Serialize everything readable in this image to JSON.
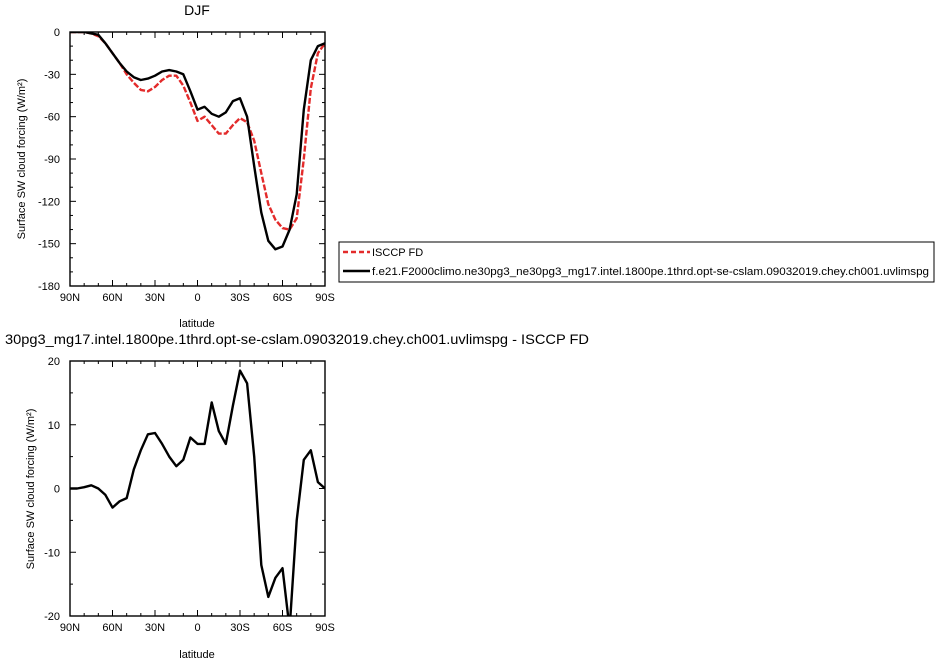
{
  "chart_data": [
    {
      "type": "line",
      "title": "DJF",
      "xlabel": "latitude",
      "ylabel": "Surface SW cloud forcing (W/m²)",
      "x_direction": "north-to-south",
      "xlim": [
        90,
        -90
      ],
      "ylim": [
        -180,
        0
      ],
      "x_ticks": [
        {
          "value": 90,
          "label": "90N"
        },
        {
          "value": 60,
          "label": "60N"
        },
        {
          "value": 30,
          "label": "30N"
        },
        {
          "value": 0,
          "label": "0"
        },
        {
          "value": -30,
          "label": "30S"
        },
        {
          "value": -60,
          "label": "60S"
        },
        {
          "value": -90,
          "label": "90S"
        }
      ],
      "y_ticks": [
        0,
        -30,
        -60,
        -90,
        -120,
        -150,
        -180
      ],
      "legend_position": "right",
      "series": [
        {
          "name": "ISCCP FD",
          "color": "#e32b2b",
          "dash": "dashed",
          "x": [
            90,
            85,
            80,
            75,
            70,
            65,
            60,
            55,
            50,
            45,
            40,
            35,
            30,
            25,
            20,
            15,
            10,
            5,
            0,
            -5,
            -10,
            -15,
            -20,
            -25,
            -30,
            -35,
            -40,
            -45,
            -50,
            -55,
            -60,
            -65,
            -70,
            -75,
            -80,
            -85,
            -90
          ],
          "y": [
            0,
            0,
            0,
            -1,
            -3,
            -8,
            -15,
            -22,
            -30,
            -36,
            -41,
            -42,
            -39,
            -34,
            -31,
            -31,
            -38,
            -50,
            -63,
            -60,
            -66,
            -72,
            -72,
            -66,
            -61,
            -64,
            -77,
            -100,
            -122,
            -133,
            -139,
            -140,
            -132,
            -90,
            -40,
            -15,
            -8
          ]
        },
        {
          "name": "f.e21.F2000climo.ne30pg3_ne30pg3_mg17.intel.1800pe.1thrd.opt-se-cslam.09032019.chey.ch001.uvlimspg",
          "color": "#000000",
          "dash": "solid",
          "x": [
            90,
            85,
            80,
            75,
            70,
            65,
            60,
            55,
            50,
            45,
            40,
            35,
            30,
            25,
            20,
            15,
            10,
            5,
            0,
            -5,
            -10,
            -15,
            -20,
            -25,
            -30,
            -35,
            -40,
            -45,
            -50,
            -55,
            -60,
            -65,
            -70,
            -75,
            -80,
            -85,
            -90
          ],
          "y": [
            0,
            0,
            0,
            -1,
            -2,
            -8,
            -15,
            -22,
            -28,
            -32,
            -34,
            -33,
            -31,
            -28,
            -27,
            -28,
            -30,
            -42,
            -55,
            -53,
            -58,
            -60,
            -57,
            -49,
            -47,
            -60,
            -95,
            -128,
            -148,
            -154,
            -152,
            -140,
            -115,
            -55,
            -20,
            -10,
            -8
          ]
        }
      ]
    },
    {
      "type": "line",
      "title": "30pg3_mg17.intel.1800pe.1thrd.opt-se-cslam.09032019.chey.ch001.uvlimspg - ISCCP FD",
      "xlabel": "latitude",
      "ylabel": "Surface SW cloud forcing (W/m²)",
      "x_direction": "north-to-south",
      "xlim": [
        90,
        -90
      ],
      "ylim": [
        -20,
        20
      ],
      "x_ticks": [
        {
          "value": 90,
          "label": "90N"
        },
        {
          "value": 60,
          "label": "60N"
        },
        {
          "value": 30,
          "label": "30N"
        },
        {
          "value": 0,
          "label": "0"
        },
        {
          "value": -30,
          "label": "30S"
        },
        {
          "value": -60,
          "label": "60S"
        },
        {
          "value": -90,
          "label": "90S"
        }
      ],
      "y_ticks": [
        20,
        10,
        0,
        -10,
        -20
      ],
      "series": [
        {
          "color": "#000000",
          "dash": "solid",
          "x": [
            90,
            85,
            80,
            75,
            70,
            65,
            60,
            55,
            50,
            45,
            40,
            35,
            30,
            25,
            20,
            15,
            10,
            5,
            0,
            -5,
            -10,
            -15,
            -20,
            -25,
            -30,
            -35,
            -40,
            -45,
            -50,
            -55,
            -60,
            -65,
            -70,
            -75,
            -80,
            -85,
            -90
          ],
          "y": [
            0,
            0,
            0.2,
            0.5,
            0,
            -1,
            -3,
            -2,
            -1.5,
            3,
            6,
            8.5,
            8.7,
            7,
            5,
            3.5,
            4.5,
            8,
            7,
            7,
            13.5,
            9,
            7,
            13,
            18.5,
            16.5,
            5,
            -12,
            -17,
            -14,
            -12.5,
            -22,
            -5,
            4.5,
            6,
            1,
            0
          ]
        }
      ]
    }
  ]
}
